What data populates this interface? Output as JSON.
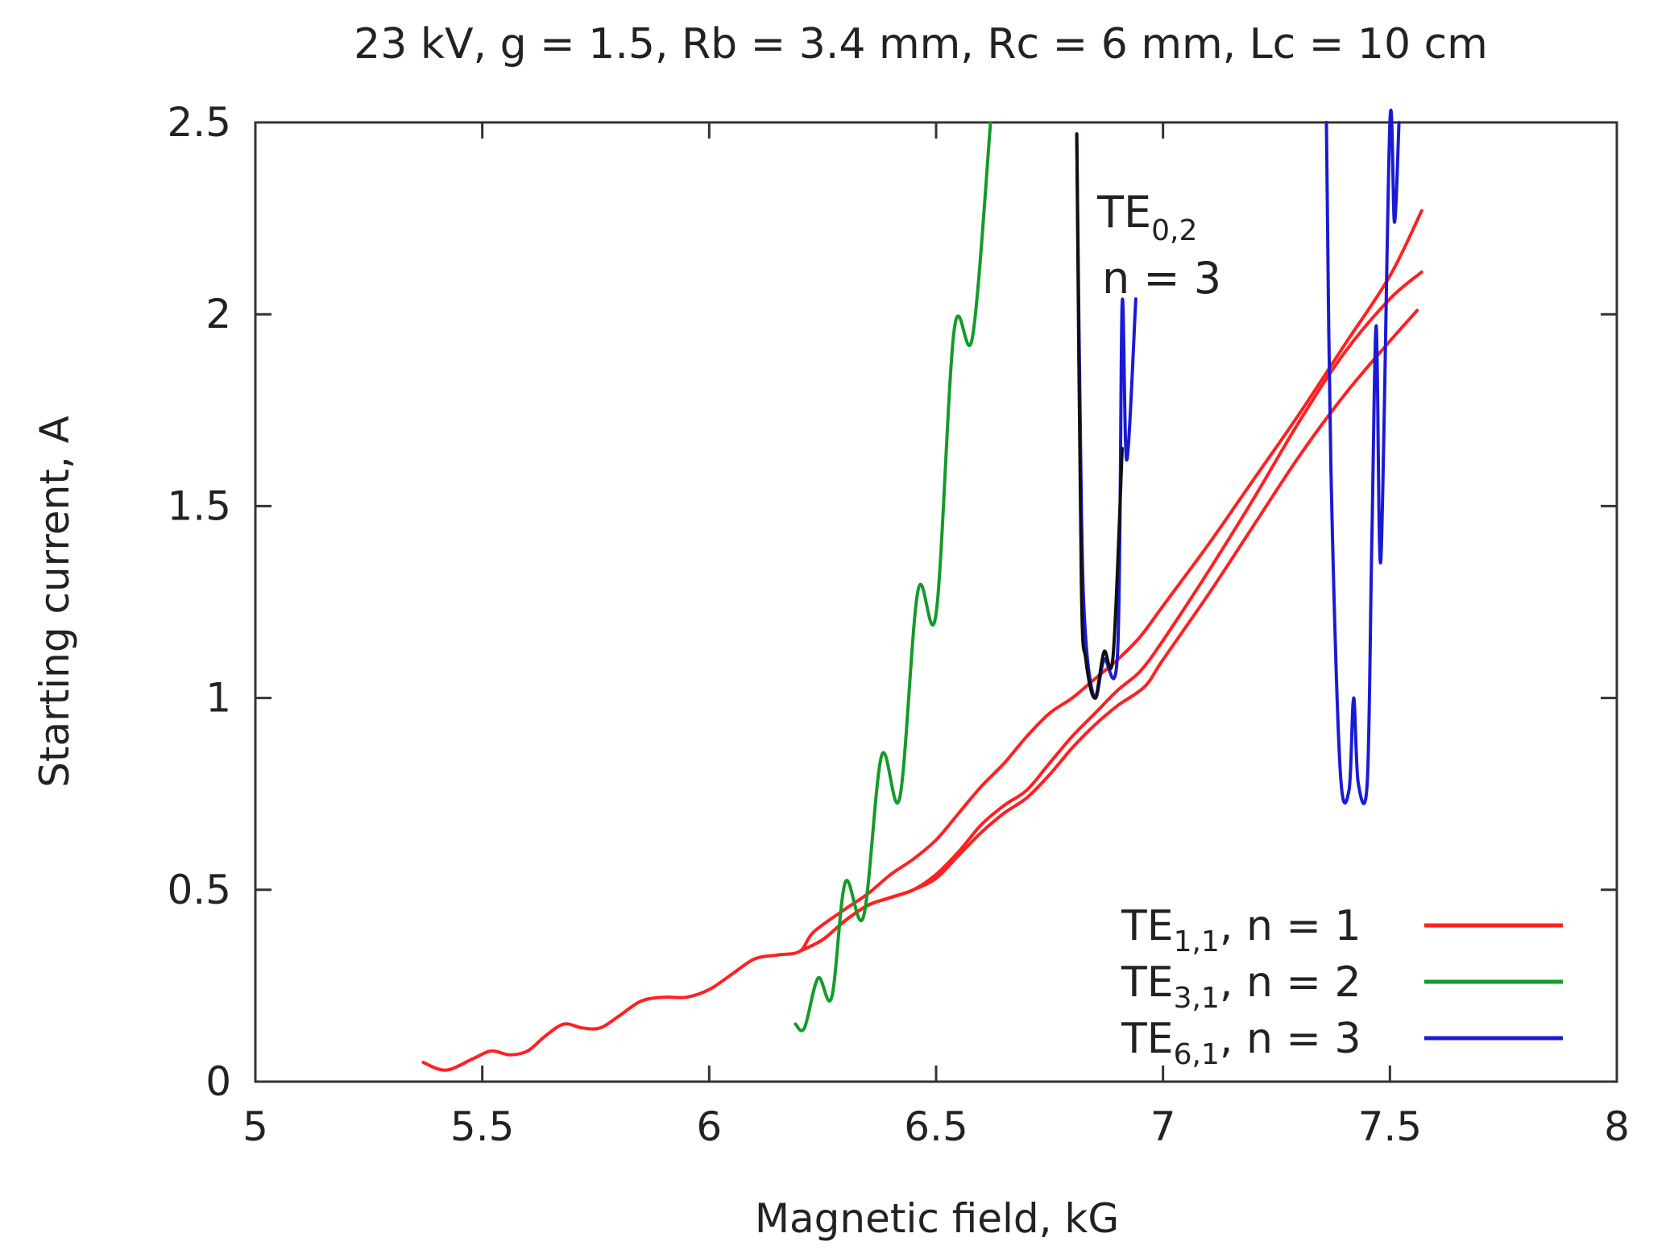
{
  "chart_data": {
    "type": "line",
    "title": "23 kV, g = 1.5, Rb = 3.4 mm, Rc = 6 mm, Lc = 10 cm",
    "xlabel": "Magnetic field, kG",
    "ylabel": "Starting current, A",
    "xlim": [
      5,
      8
    ],
    "ylim": [
      0,
      2.5
    ],
    "xticks": [
      5,
      5.5,
      6,
      6.5,
      7,
      7.5,
      8
    ],
    "xtick_labels": [
      "5",
      "5.5",
      "6",
      "6.5",
      "7",
      "7.5",
      "8"
    ],
    "yticks": [
      0,
      0.5,
      1,
      1.5,
      2,
      2.5
    ],
    "ytick_labels": [
      "0",
      "0.5",
      "1",
      "1.5",
      "2",
      "2.5"
    ],
    "grid": false,
    "legend_position": "bottom-right",
    "legend": [
      {
        "base": "TE",
        "sub": "1,1",
        "rest": ", n = 1",
        "color": "#ff2020",
        "series": "te11"
      },
      {
        "base": "TE",
        "sub": "3,1",
        "rest": ", n = 2",
        "color": "#159a2a",
        "series": "te31"
      },
      {
        "base": "TE",
        "sub": "6,1",
        "rest": ", n = 3",
        "color": "#1a1ad6",
        "series": "te61"
      }
    ],
    "annotation": {
      "base": "TE",
      "sub": "0,2",
      "line2": "n = 3",
      "x": 6.82,
      "y": 2.3
    },
    "series": [
      {
        "name": "TE1,1 n=1 (upper branch)",
        "group": "te11",
        "color": "#ff2020",
        "points": [
          [
            5.37,
            0.05
          ],
          [
            5.42,
            0.03
          ],
          [
            5.48,
            0.06
          ],
          [
            5.52,
            0.08
          ],
          [
            5.56,
            0.07
          ],
          [
            5.6,
            0.08
          ],
          [
            5.64,
            0.12
          ],
          [
            5.68,
            0.15
          ],
          [
            5.72,
            0.14
          ],
          [
            5.76,
            0.14
          ],
          [
            5.8,
            0.17
          ],
          [
            5.85,
            0.21
          ],
          [
            5.9,
            0.22
          ],
          [
            5.95,
            0.22
          ],
          [
            6.0,
            0.24
          ],
          [
            6.05,
            0.28
          ],
          [
            6.1,
            0.32
          ],
          [
            6.15,
            0.33
          ],
          [
            6.2,
            0.34
          ],
          [
            6.23,
            0.39
          ],
          [
            6.3,
            0.45
          ],
          [
            6.35,
            0.49
          ],
          [
            6.4,
            0.54
          ],
          [
            6.45,
            0.58
          ],
          [
            6.5,
            0.63
          ],
          [
            6.55,
            0.7
          ],
          [
            6.6,
            0.77
          ],
          [
            6.65,
            0.83
          ],
          [
            6.7,
            0.9
          ],
          [
            6.75,
            0.96
          ],
          [
            6.8,
            1.0
          ],
          [
            6.85,
            1.05
          ],
          [
            6.9,
            1.1
          ],
          [
            6.95,
            1.16
          ],
          [
            7.0,
            1.24
          ],
          [
            7.1,
            1.4
          ],
          [
            7.2,
            1.57
          ],
          [
            7.3,
            1.74
          ],
          [
            7.4,
            1.92
          ],
          [
            7.5,
            2.1
          ],
          [
            7.57,
            2.27
          ]
        ]
      },
      {
        "name": "TE1,1 n=1 (middle branch)",
        "group": "te11",
        "color": "#ff2020",
        "points": [
          [
            6.2,
            0.34
          ],
          [
            6.25,
            0.37
          ],
          [
            6.3,
            0.42
          ],
          [
            6.35,
            0.46
          ],
          [
            6.4,
            0.48
          ],
          [
            6.45,
            0.5
          ],
          [
            6.5,
            0.54
          ],
          [
            6.55,
            0.6
          ],
          [
            6.6,
            0.67
          ],
          [
            6.65,
            0.72
          ],
          [
            6.7,
            0.76
          ],
          [
            6.75,
            0.83
          ],
          [
            6.8,
            0.9
          ],
          [
            6.85,
            0.96
          ],
          [
            6.9,
            1.02
          ],
          [
            6.95,
            1.07
          ],
          [
            7.0,
            1.15
          ],
          [
            7.1,
            1.33
          ],
          [
            7.2,
            1.52
          ],
          [
            7.3,
            1.72
          ],
          [
            7.4,
            1.9
          ],
          [
            7.5,
            2.04
          ],
          [
            7.57,
            2.11
          ]
        ]
      },
      {
        "name": "TE1,1 n=1 (lower branch)",
        "group": "te11",
        "color": "#ff2020",
        "points": [
          [
            6.2,
            0.34
          ],
          [
            6.25,
            0.37
          ],
          [
            6.3,
            0.42
          ],
          [
            6.35,
            0.46
          ],
          [
            6.4,
            0.48
          ],
          [
            6.45,
            0.5
          ],
          [
            6.5,
            0.53
          ],
          [
            6.55,
            0.59
          ],
          [
            6.6,
            0.65
          ],
          [
            6.65,
            0.7
          ],
          [
            6.7,
            0.74
          ],
          [
            6.75,
            0.8
          ],
          [
            6.8,
            0.87
          ],
          [
            6.85,
            0.93
          ],
          [
            6.9,
            0.98
          ],
          [
            6.96,
            1.03
          ],
          [
            7.0,
            1.1
          ],
          [
            7.1,
            1.27
          ],
          [
            7.2,
            1.45
          ],
          [
            7.3,
            1.63
          ],
          [
            7.4,
            1.79
          ],
          [
            7.5,
            1.93
          ],
          [
            7.56,
            2.01
          ]
        ]
      },
      {
        "name": "TE3,1 n=2",
        "group": "te31",
        "color": "#159a2a",
        "points": [
          [
            6.19,
            0.15
          ],
          [
            6.21,
            0.14
          ],
          [
            6.24,
            0.27
          ],
          [
            6.27,
            0.22
          ],
          [
            6.3,
            0.52
          ],
          [
            6.34,
            0.43
          ],
          [
            6.38,
            0.85
          ],
          [
            6.42,
            0.74
          ],
          [
            6.46,
            1.28
          ],
          [
            6.5,
            1.22
          ],
          [
            6.54,
            1.96
          ],
          [
            6.58,
            1.94
          ],
          [
            6.62,
            2.5
          ]
        ]
      },
      {
        "name": "TE6,1 n=3 (left)",
        "group": "te61",
        "color": "#1a1ad6",
        "points": [
          [
            6.81,
            2.47
          ],
          [
            6.82,
            1.5
          ],
          [
            6.83,
            1.15
          ],
          [
            6.85,
            1.0
          ],
          [
            6.87,
            1.1
          ],
          [
            6.9,
            1.12
          ],
          [
            6.91,
            2.03
          ],
          [
            6.92,
            1.62
          ],
          [
            6.94,
            2.04
          ]
        ]
      },
      {
        "name": "TE6,1 n=3 (right)",
        "group": "te61",
        "color": "#1a1ad6",
        "points": [
          [
            7.36,
            2.5
          ],
          [
            7.37,
            1.6
          ],
          [
            7.39,
            0.82
          ],
          [
            7.41,
            0.76
          ],
          [
            7.42,
            1.0
          ],
          [
            7.43,
            0.78
          ],
          [
            7.45,
            0.78
          ],
          [
            7.46,
            1.4
          ],
          [
            7.47,
            1.97
          ],
          [
            7.48,
            1.36
          ],
          [
            7.5,
            2.5
          ],
          [
            7.51,
            2.24
          ],
          [
            7.52,
            2.5
          ]
        ]
      },
      {
        "name": "TE0,2 n=3",
        "group": "te02",
        "color": "#111111",
        "points": [
          [
            6.81,
            2.47
          ],
          [
            6.82,
            1.3
          ],
          [
            6.83,
            1.1
          ],
          [
            6.85,
            1.0
          ],
          [
            6.87,
            1.12
          ],
          [
            6.89,
            1.11
          ],
          [
            6.91,
            1.65
          ]
        ]
      }
    ]
  }
}
